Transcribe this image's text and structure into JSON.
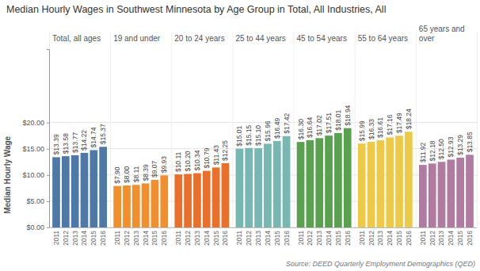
{
  "chart_data": {
    "type": "bar",
    "title": "Median Hourly Wages in Southwest Minnesota by Age Group in Total, All Industries, All",
    "y_label": "Median Hourly Wage",
    "source": "Source: DEED Quarterly Employment Demographics (QED)",
    "categories": [
      "2011",
      "2012",
      "2013",
      "2014",
      "2015",
      "2016"
    ],
    "series": [
      {
        "name": "Total, all ages",
        "color": "#4e79a7",
        "values": [
          13.39,
          13.58,
          13.77,
          14.22,
          14.74,
          15.37
        ],
        "value_labels": [
          "$13.39",
          "$13.58",
          "$13.77",
          "$14.22",
          "$14.74",
          "$15.37"
        ]
      },
      {
        "name": "19 and under",
        "color": "#f28e2b",
        "values": [
          7.9,
          8.0,
          8.11,
          8.39,
          9.07,
          9.93
        ],
        "value_labels": [
          "$7.90",
          "$8.00",
          "$8.11",
          "$8.39",
          "$9.07",
          "$9.93"
        ]
      },
      {
        "name": "20 to 24 years",
        "color": "#e8702a",
        "values": [
          10.11,
          10.2,
          10.34,
          10.79,
          11.43,
          12.25
        ],
        "value_labels": [
          "$10.11",
          "$10.20",
          "$10.34",
          "$10.79",
          "$11.43",
          "$12.25"
        ]
      },
      {
        "name": "25 to 44 years",
        "color": "#76b7b2",
        "values": [
          15.01,
          15.15,
          15.1,
          15.96,
          16.49,
          17.42
        ],
        "value_labels": [
          "$15.01",
          "$15.15",
          "$15.10",
          "$15.96",
          "$16.49",
          "$17.42"
        ]
      },
      {
        "name": "45 to 54 years",
        "color": "#59a14f",
        "values": [
          16.3,
          16.64,
          17.02,
          17.51,
          18.01,
          18.94
        ],
        "value_labels": [
          "$16.30",
          "$16.64",
          "$17.02",
          "$17.51",
          "$18.01",
          "$18.94"
        ]
      },
      {
        "name": "55 to 64 years",
        "color": "#edc948",
        "values": [
          15.99,
          16.33,
          16.61,
          17.16,
          17.49,
          18.24
        ],
        "value_labels": [
          "$15.99",
          "$16.33",
          "$16.61",
          "$17.16",
          "$17.49",
          "$18.24"
        ]
      },
      {
        "name": "65 years and over",
        "color": "#b07aa1",
        "values": [
          11.92,
          12.18,
          12.5,
          12.93,
          13.29,
          13.85
        ],
        "value_labels": [
          "$11.92",
          "$12.18",
          "$12.50",
          "$12.93",
          "$13.29",
          "$13.85"
        ]
      }
    ],
    "ylim": [
      0,
      34
    ],
    "yticks": [
      {
        "value": 0,
        "label": "$0.00"
      },
      {
        "value": 5,
        "label": "$5.00"
      },
      {
        "value": 10,
        "label": "$10.00"
      },
      {
        "value": 15,
        "label": "$15.00"
      },
      {
        "value": 20,
        "label": "$20.00"
      }
    ],
    "grid": true,
    "data_labels": true
  }
}
